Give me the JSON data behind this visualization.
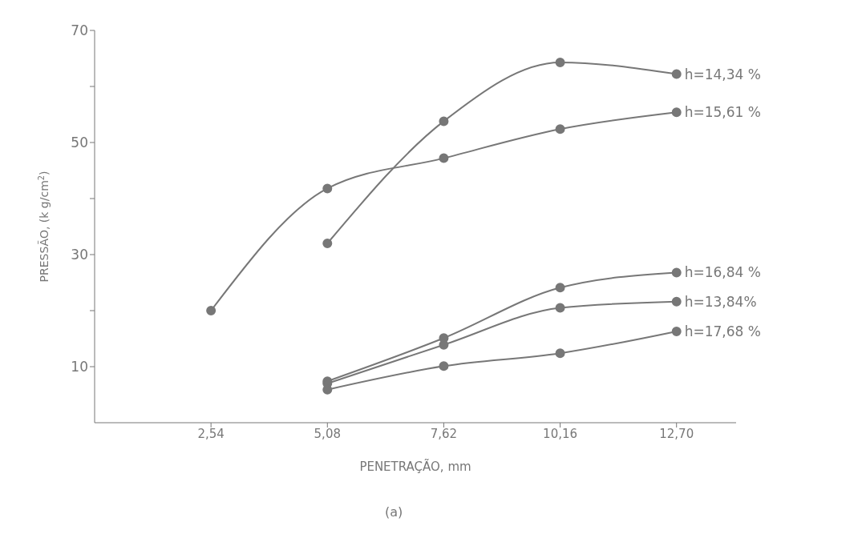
{
  "chart_data": {
    "type": "line",
    "xlabel": "PENETRAÇÃO, mm",
    "ylabel": "PRESSÃO, (k g/cm$^{2}$)",
    "annotations": [
      "(a)"
    ],
    "x": [
      2.54,
      5.08,
      7.62,
      10.16,
      12.7
    ],
    "series": [
      {
        "name": "h=14,34 %",
        "color": "#777777",
        "values": [
          null,
          32,
          53.8,
          64.3,
          62.2
        ]
      },
      {
        "name": "h=15,61 %",
        "color": "#777777",
        "values": [
          20,
          41.8,
          47.2,
          52.4,
          55.4
        ]
      },
      {
        "name": "h=16,84 %",
        "color": "#777777",
        "values": [
          null,
          7.4,
          15.1,
          24.1,
          26.8
        ]
      },
      {
        "name": "h=13,84%",
        "color": "#777777",
        "values": [
          null,
          7.0,
          13.9,
          20.5,
          21.6
        ]
      },
      {
        "name": "h=17,68 %",
        "color": "#777777",
        "values": [
          null,
          5.9,
          10.1,
          12.4,
          16.3
        ]
      }
    ],
    "xlim": [
      0,
      14
    ],
    "xticks": [
      {
        "value": 2.54,
        "label": "2,54"
      },
      {
        "value": 5.08,
        "label": "5,08"
      },
      {
        "value": 7.62,
        "label": "7,62"
      },
      {
        "value": 10.16,
        "label": "10,16"
      },
      {
        "value": 12.7,
        "label": "12,70"
      }
    ],
    "ylim": [
      0,
      70
    ],
    "yticks": [
      {
        "value": 10,
        "label": "10"
      },
      {
        "value": 20,
        "label": null
      },
      {
        "value": 30,
        "label": "30"
      },
      {
        "value": 40,
        "label": null
      },
      {
        "value": 50,
        "label": "50"
      },
      {
        "value": 60,
        "label": null
      },
      {
        "value": 70,
        "label": "70"
      }
    ],
    "grid": false,
    "legend": false,
    "marker": "circle",
    "line_style": "solid"
  }
}
